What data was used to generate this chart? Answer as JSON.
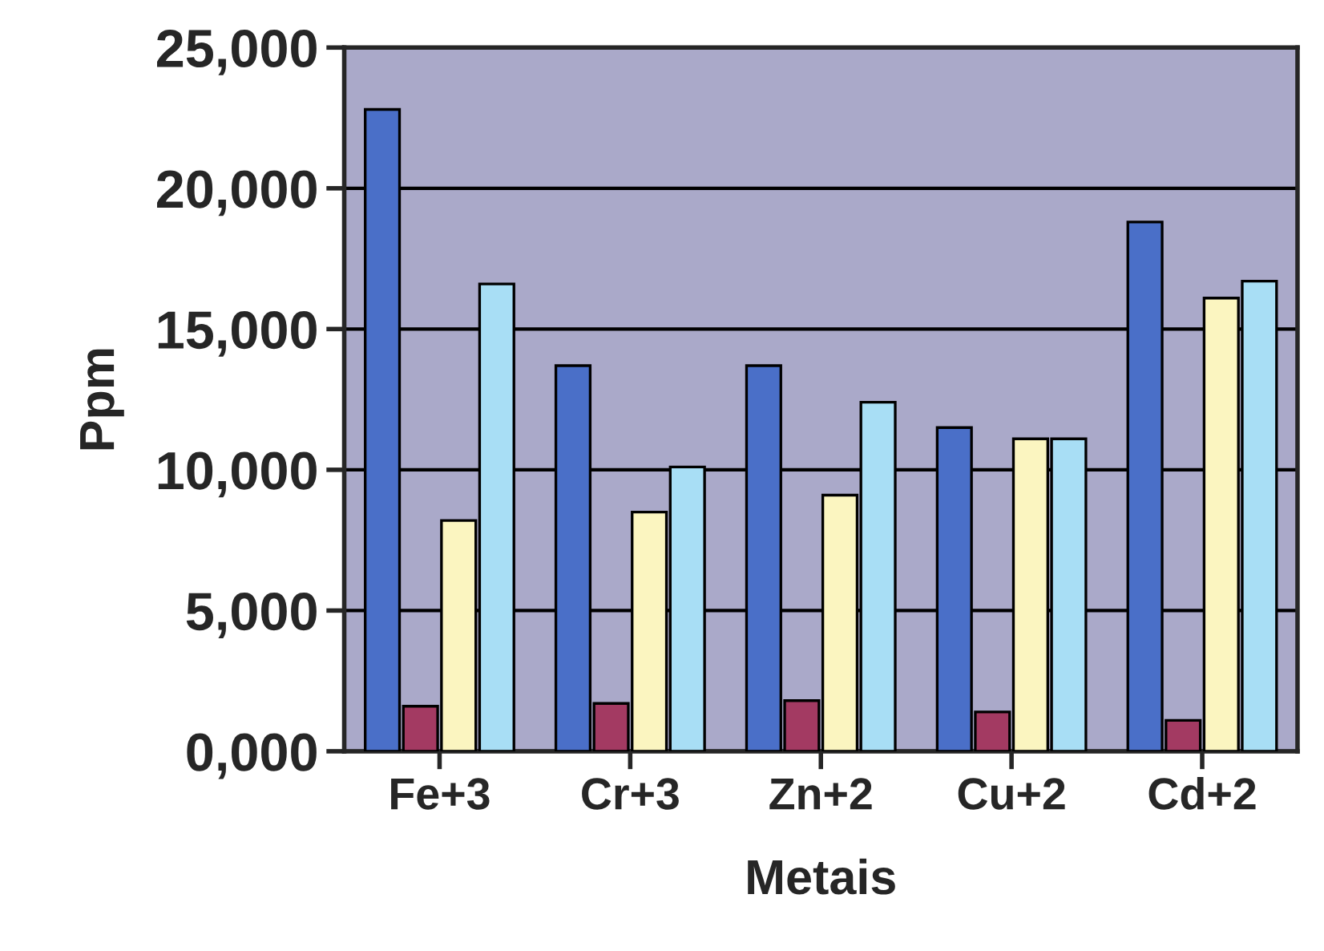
{
  "chart_data": {
    "type": "bar",
    "xlabel": "Metais",
    "ylabel": "Ppm",
    "categories": [
      "Fe+3",
      "Cr+3",
      "Zn+2",
      "Cu+2",
      "Cd+2"
    ],
    "series": [
      {
        "color": "#4a6fc8",
        "values": [
          22800,
          13700,
          13700,
          11500,
          18800
        ]
      },
      {
        "color": "#a33a62",
        "values": [
          1600,
          1700,
          1800,
          1400,
          1100
        ]
      },
      {
        "color": "#fbf5c0",
        "values": [
          8200,
          8500,
          9100,
          11100,
          16100
        ]
      },
      {
        "color": "#a8def5",
        "values": [
          16600,
          10100,
          12400,
          11100,
          16700
        ]
      }
    ],
    "ylim": [
      0,
      25000
    ],
    "yticks": [
      {
        "value": 0,
        "label": "0,000"
      },
      {
        "value": 5000,
        "label": "5,000"
      },
      {
        "value": 10000,
        "label": "10,000"
      },
      {
        "value": 15000,
        "label": "15,000"
      },
      {
        "value": 20000,
        "label": "20,000"
      },
      {
        "value": 25000,
        "label": "25,000"
      }
    ],
    "grid": "y",
    "legend": false
  }
}
